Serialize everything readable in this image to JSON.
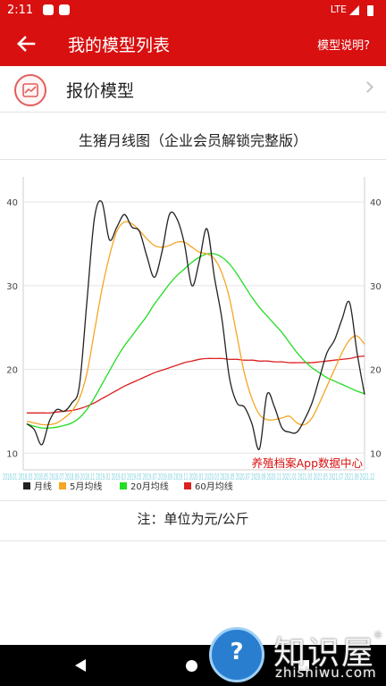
{
  "status_bar": {
    "time": "2:11",
    "network": "LTE"
  },
  "app_bar": {
    "title": "我的模型列表",
    "help_label": "模型说明?"
  },
  "model_row": {
    "label": "报价模型",
    "icon": "chart-icon"
  },
  "chart_heading": "生猪月线图（企业会员解锁完整版）",
  "note": "注：单位为元/公斤",
  "colors": {
    "brand": "#d81010",
    "month_line": "#222222",
    "ma5": "#f5a623",
    "ma20": "#22dd22",
    "ma60": "#dd1f1f",
    "watermark_text": "#d81010"
  },
  "chart_data": {
    "type": "line",
    "watermark": "养殖档案App数据中心",
    "x_axis_text": "2018.01 2018.03 2018.05 2018.07 2018.09 2018.11 2019.01 2019.03 2019.05 2019.07 2019.09 2019.11 2020.01 2020.03 2020.05 2020.07 2020.09 2020.11 2021.01 2021.03 2021.05 2021.07 2021.09 2021.12",
    "y_ticks": [
      10,
      20,
      30,
      40
    ],
    "ylim": [
      8,
      43
    ],
    "grid": true,
    "legend_position": "bottom-left",
    "series": [
      {
        "name": "月线",
        "color_key": "month_line",
        "values": [
          13.5,
          12.8,
          11.0,
          13.8,
          15.2,
          15.0,
          16.0,
          18.0,
          28.0,
          38.0,
          40.0,
          35.5,
          37.0,
          38.5,
          37.0,
          36.5,
          33.5,
          31.0,
          34.0,
          38.5,
          38.0,
          35.0,
          30.0,
          33.0,
          36.8,
          31.0,
          26.0,
          19.0,
          16.0,
          15.5,
          13.5,
          10.5,
          17.0,
          15.5,
          13.0,
          12.5,
          12.5,
          14.0,
          16.0,
          19.0,
          22.0,
          23.5,
          26.0,
          28.0,
          22.0,
          17.0
        ]
      },
      {
        "name": "5月均线",
        "color_key": "ma5",
        "values": [
          13.8,
          13.6,
          13.4,
          13.4,
          13.6,
          14.2,
          15.0,
          16.5,
          19.5,
          24.5,
          29.5,
          33.5,
          36.5,
          37.6,
          37.4,
          36.6,
          35.6,
          34.8,
          34.6,
          34.8,
          35.2,
          35.2,
          34.6,
          34.0,
          33.8,
          33.2,
          31.5,
          28.5,
          24.0,
          19.5,
          16.5,
          14.6,
          14.0,
          14.0,
          14.2,
          14.4,
          13.6,
          13.4,
          14.2,
          16.0,
          18.0,
          20.0,
          22.0,
          23.5,
          24.0,
          23.0
        ]
      },
      {
        "name": "20月均线",
        "color_key": "ma20",
        "values": [
          13.5,
          13.2,
          13.0,
          13.0,
          13.1,
          13.3,
          13.6,
          14.2,
          15.2,
          16.6,
          18.2,
          19.8,
          21.4,
          22.8,
          24.0,
          25.2,
          26.4,
          27.8,
          29.0,
          30.2,
          31.2,
          32.0,
          32.8,
          33.4,
          33.8,
          33.8,
          33.4,
          32.6,
          31.4,
          30.0,
          28.6,
          27.4,
          26.4,
          25.4,
          24.4,
          23.2,
          22.0,
          21.0,
          20.2,
          19.6,
          19.0,
          18.6,
          18.2,
          17.8,
          17.4,
          17.1
        ]
      },
      {
        "name": "60月均线",
        "color_key": "ma60",
        "values": [
          14.8,
          14.8,
          14.8,
          14.8,
          14.9,
          15.0,
          15.1,
          15.3,
          15.6,
          16.0,
          16.5,
          17.0,
          17.5,
          18.0,
          18.4,
          18.8,
          19.2,
          19.6,
          19.9,
          20.2,
          20.5,
          20.8,
          21.0,
          21.2,
          21.3,
          21.3,
          21.3,
          21.2,
          21.2,
          21.1,
          21.1,
          21.0,
          21.0,
          20.9,
          20.9,
          20.8,
          20.8,
          20.8,
          20.8,
          20.9,
          21.0,
          21.1,
          21.2,
          21.3,
          21.5,
          21.6
        ]
      }
    ]
  }
}
